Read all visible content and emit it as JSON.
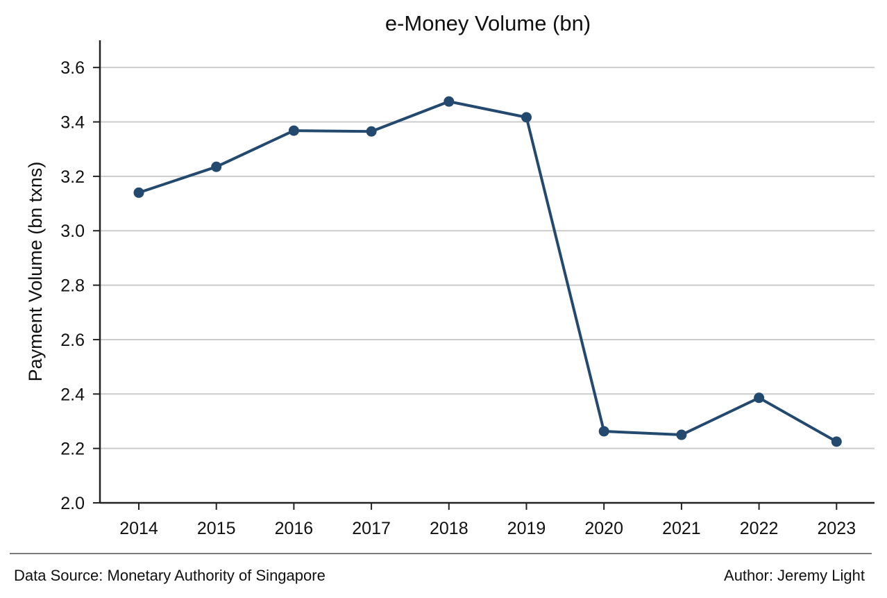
{
  "chart_data": {
    "type": "line",
    "title": "e-Money Volume (bn)",
    "xlabel": "",
    "ylabel": "Payment Volume (bn txns)",
    "x": [
      "2014",
      "2015",
      "2016",
      "2017",
      "2018",
      "2019",
      "2020",
      "2021",
      "2022",
      "2023"
    ],
    "series": [
      {
        "values": [
          3.14,
          3.235,
          3.368,
          3.365,
          3.475,
          3.417,
          2.263,
          2.25,
          2.386,
          2.225
        ]
      }
    ],
    "ylim": [
      2.0,
      3.7
    ],
    "yticks": [
      "2.0",
      "2.2",
      "2.4",
      "2.6",
      "2.8",
      "3.0",
      "3.2",
      "3.4",
      "3.6"
    ],
    "grid": "horizontal",
    "legend": "none",
    "colors": {
      "line": "#234a6e",
      "grid": "#cccccc",
      "axis": "#222222"
    }
  },
  "footer": {
    "source": "Data Source: Monetary Authority of Singapore",
    "author": "Author: Jeremy Light"
  }
}
